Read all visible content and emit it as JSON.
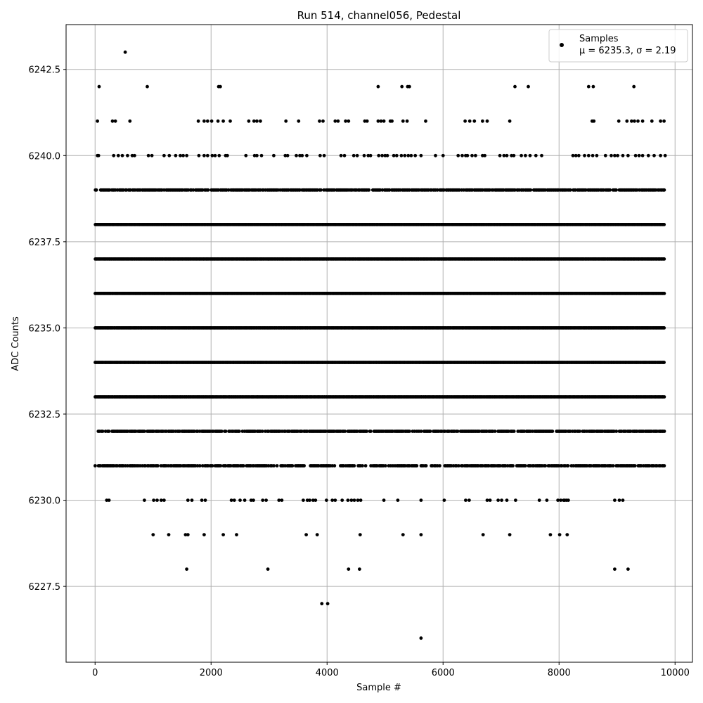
{
  "chart_data": {
    "type": "scatter",
    "title": "Run 514, channel056, Pedestal",
    "xlabel": "Sample #",
    "ylabel": "ADC Counts",
    "xlim": [
      -500,
      10300
    ],
    "ylim": [
      6225.3,
      6243.8
    ],
    "xticks": [
      0,
      2000,
      4000,
      6000,
      8000,
      10000
    ],
    "xtick_labels": [
      "0",
      "2000",
      "4000",
      "6000",
      "8000",
      "10000"
    ],
    "yticks": [
      6227.5,
      6230.0,
      6232.5,
      6235.0,
      6237.5,
      6240.0,
      6242.5
    ],
    "ytick_labels": [
      "6227.5",
      "6230.0",
      "6232.5",
      "6235.0",
      "6237.5",
      "6240.0",
      "6242.5"
    ],
    "grid": true,
    "legend": {
      "placement": "top-right",
      "entry_line1": "Samples",
      "entry_line2": "μ = 6235.3, σ = 2.19"
    },
    "marker_color": "#000000",
    "n_samples": 9820,
    "sample_range": [
      0,
      9820
    ],
    "series": [
      {
        "name": "Samples",
        "dense_levels": [
          {
            "y": 6239,
            "fraction": 0.85
          },
          {
            "y": 6238,
            "fraction": 1.0
          },
          {
            "y": 6237,
            "fraction": 1.0
          },
          {
            "y": 6236,
            "fraction": 1.0
          },
          {
            "y": 6235,
            "fraction": 1.0
          },
          {
            "y": 6234,
            "fraction": 1.0
          },
          {
            "y": 6233,
            "fraction": 1.0
          },
          {
            "y": 6232,
            "fraction": 0.8
          },
          {
            "y": 6231,
            "fraction": 0.75
          }
        ],
        "sparse_points": [
          {
            "x": 520,
            "y": 6243
          },
          {
            "x": 70,
            "y": 6242
          },
          {
            "x": 900,
            "y": 6242
          },
          {
            "x": 2130,
            "y": 6242
          },
          {
            "x": 2160,
            "y": 6242
          },
          {
            "x": 4880,
            "y": 6242
          },
          {
            "x": 5290,
            "y": 6242
          },
          {
            "x": 5390,
            "y": 6242
          },
          {
            "x": 5420,
            "y": 6242
          },
          {
            "x": 7240,
            "y": 6242
          },
          {
            "x": 7470,
            "y": 6242
          },
          {
            "x": 8510,
            "y": 6242
          },
          {
            "x": 8590,
            "y": 6242
          },
          {
            "x": 9290,
            "y": 6242
          },
          {
            "x": 40,
            "y": 6241
          },
          {
            "x": 300,
            "y": 6241
          },
          {
            "x": 350,
            "y": 6241
          },
          {
            "x": 600,
            "y": 6241
          },
          {
            "x": 1780,
            "y": 6241
          },
          {
            "x": 1880,
            "y": 6241
          },
          {
            "x": 1940,
            "y": 6241
          },
          {
            "x": 2010,
            "y": 6241
          },
          {
            "x": 2120,
            "y": 6241
          },
          {
            "x": 2210,
            "y": 6241
          },
          {
            "x": 2330,
            "y": 6241
          },
          {
            "x": 2650,
            "y": 6241
          },
          {
            "x": 2740,
            "y": 6241
          },
          {
            "x": 2790,
            "y": 6241
          },
          {
            "x": 2850,
            "y": 6241
          },
          {
            "x": 3290,
            "y": 6241
          },
          {
            "x": 3510,
            "y": 6241
          },
          {
            "x": 3870,
            "y": 6241
          },
          {
            "x": 3930,
            "y": 6241
          },
          {
            "x": 4140,
            "y": 6241
          },
          {
            "x": 4190,
            "y": 6241
          },
          {
            "x": 4320,
            "y": 6241
          },
          {
            "x": 4370,
            "y": 6241
          },
          {
            "x": 4650,
            "y": 6241
          },
          {
            "x": 4690,
            "y": 6241
          },
          {
            "x": 4880,
            "y": 6241
          },
          {
            "x": 4930,
            "y": 6241
          },
          {
            "x": 4980,
            "y": 6241
          },
          {
            "x": 5090,
            "y": 6241
          },
          {
            "x": 5120,
            "y": 6241
          },
          {
            "x": 5310,
            "y": 6241
          },
          {
            "x": 5380,
            "y": 6241
          },
          {
            "x": 5700,
            "y": 6241
          },
          {
            "x": 6380,
            "y": 6241
          },
          {
            "x": 6460,
            "y": 6241
          },
          {
            "x": 6540,
            "y": 6241
          },
          {
            "x": 6680,
            "y": 6241
          },
          {
            "x": 6760,
            "y": 6241
          },
          {
            "x": 7150,
            "y": 6241
          },
          {
            "x": 8570,
            "y": 6241
          },
          {
            "x": 8600,
            "y": 6241
          },
          {
            "x": 9030,
            "y": 6241
          },
          {
            "x": 9170,
            "y": 6241
          },
          {
            "x": 9250,
            "y": 6241
          },
          {
            "x": 9300,
            "y": 6241
          },
          {
            "x": 9360,
            "y": 6241
          },
          {
            "x": 9440,
            "y": 6241
          },
          {
            "x": 9600,
            "y": 6241
          },
          {
            "x": 9750,
            "y": 6241
          },
          {
            "x": 9810,
            "y": 6241
          },
          {
            "x": 6020,
            "y": 6230
          },
          {
            "x": 8100,
            "y": 6230
          },
          {
            "x": 1000,
            "y": 6229
          },
          {
            "x": 1270,
            "y": 6229
          },
          {
            "x": 1560,
            "y": 6229
          },
          {
            "x": 1600,
            "y": 6229
          },
          {
            "x": 1880,
            "y": 6229
          },
          {
            "x": 2210,
            "y": 6229
          },
          {
            "x": 2440,
            "y": 6229
          },
          {
            "x": 3640,
            "y": 6229
          },
          {
            "x": 3830,
            "y": 6229
          },
          {
            "x": 4570,
            "y": 6229
          },
          {
            "x": 5310,
            "y": 6229
          },
          {
            "x": 5620,
            "y": 6229
          },
          {
            "x": 6690,
            "y": 6229
          },
          {
            "x": 7150,
            "y": 6229
          },
          {
            "x": 7850,
            "y": 6229
          },
          {
            "x": 8010,
            "y": 6229
          },
          {
            "x": 8140,
            "y": 6229
          },
          {
            "x": 1580,
            "y": 6228
          },
          {
            "x": 2980,
            "y": 6228
          },
          {
            "x": 4370,
            "y": 6228
          },
          {
            "x": 4560,
            "y": 6228
          },
          {
            "x": 8960,
            "y": 6228
          },
          {
            "x": 9190,
            "y": 6228
          },
          {
            "x": 3910,
            "y": 6227
          },
          {
            "x": 4010,
            "y": 6227
          },
          {
            "x": 5620,
            "y": 6226
          }
        ],
        "level_6240": [
          40,
          60,
          320,
          400,
          470,
          560,
          640,
          680,
          920,
          980,
          1190,
          1280,
          1390,
          1470,
          1520,
          1580,
          1790,
          1880,
          1940,
          2020,
          2070,
          2140,
          2250,
          2280,
          2600,
          2750,
          2790,
          2870,
          3080,
          3280,
          3320,
          3470,
          3530,
          3570,
          3650,
          3880,
          3950,
          4240,
          4300,
          4460,
          4520,
          4640,
          4710,
          4750,
          4890,
          4950,
          5000,
          5040,
          5150,
          5200,
          5280,
          5340,
          5400,
          5450,
          5520,
          5620,
          5870,
          6000,
          6260,
          6330,
          6390,
          6420,
          6500,
          6560,
          6680,
          6720,
          6980,
          7050,
          7100,
          7180,
          7220,
          7350,
          7420,
          7500,
          7600,
          7700,
          8240,
          8290,
          8340,
          8440,
          8510,
          8580,
          8650,
          8800,
          8900,
          8960,
          9010,
          9100,
          9190,
          9320,
          9380,
          9440,
          9540,
          9640,
          9750,
          9830
        ],
        "level_6230": [
          200,
          240,
          850,
          1010,
          1070,
          1140,
          1190,
          1600,
          1670,
          1840,
          1900,
          2350,
          2400,
          2500,
          2580,
          2690,
          2730,
          2890,
          2950,
          3170,
          3220,
          3590,
          3660,
          3700,
          3760,
          3800,
          3990,
          4090,
          4140,
          4260,
          4360,
          4420,
          4470,
          4530,
          4580,
          4980,
          5220,
          5620,
          6450,
          6390,
          6760,
          6810,
          6950,
          7010,
          7100,
          7250,
          7660,
          7790,
          7980,
          8030,
          8080,
          8130,
          8160,
          8960,
          9040,
          9100
        ]
      }
    ]
  }
}
